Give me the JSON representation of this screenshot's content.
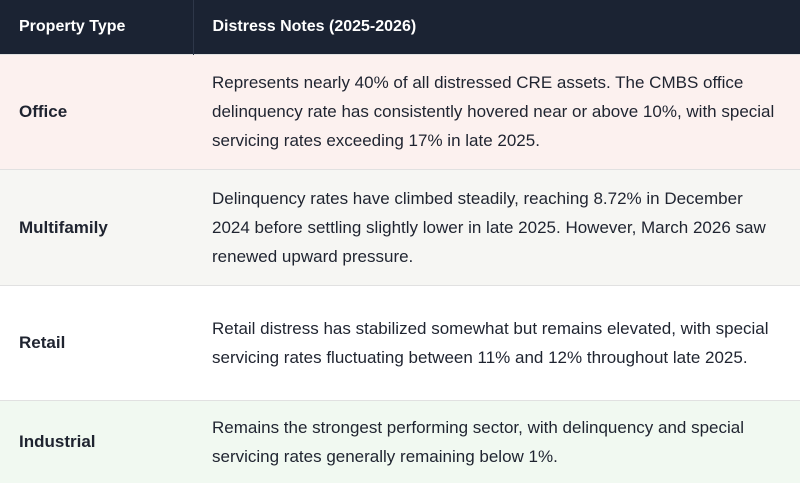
{
  "table": {
    "header": [
      "Property Type",
      "Distress Notes (2025-2026)"
    ],
    "rows": [
      [
        "Office",
        "Represents nearly 40% of all distressed CRE assets. The CMBS office delinquency rate has consistently hovered near or above 10%, with special servicing rates exceeding 17% in late 2025."
      ],
      [
        "Multifamily",
        "Delinquency rates have climbed steadily, reaching 8.72% in December 2024 before settling slightly lower in late 2025. However, March 2026 saw renewed upward pressure."
      ],
      [
        "Retail",
        "Retail distress has stabilized somewhat but remains elevated, with special servicing rates fluctuating between 11% and 12% throughout late 2025."
      ],
      [
        "Industrial",
        "Remains the strongest performing sector, with delinquency and special servicing rates generally remaining below 1%."
      ]
    ]
  }
}
